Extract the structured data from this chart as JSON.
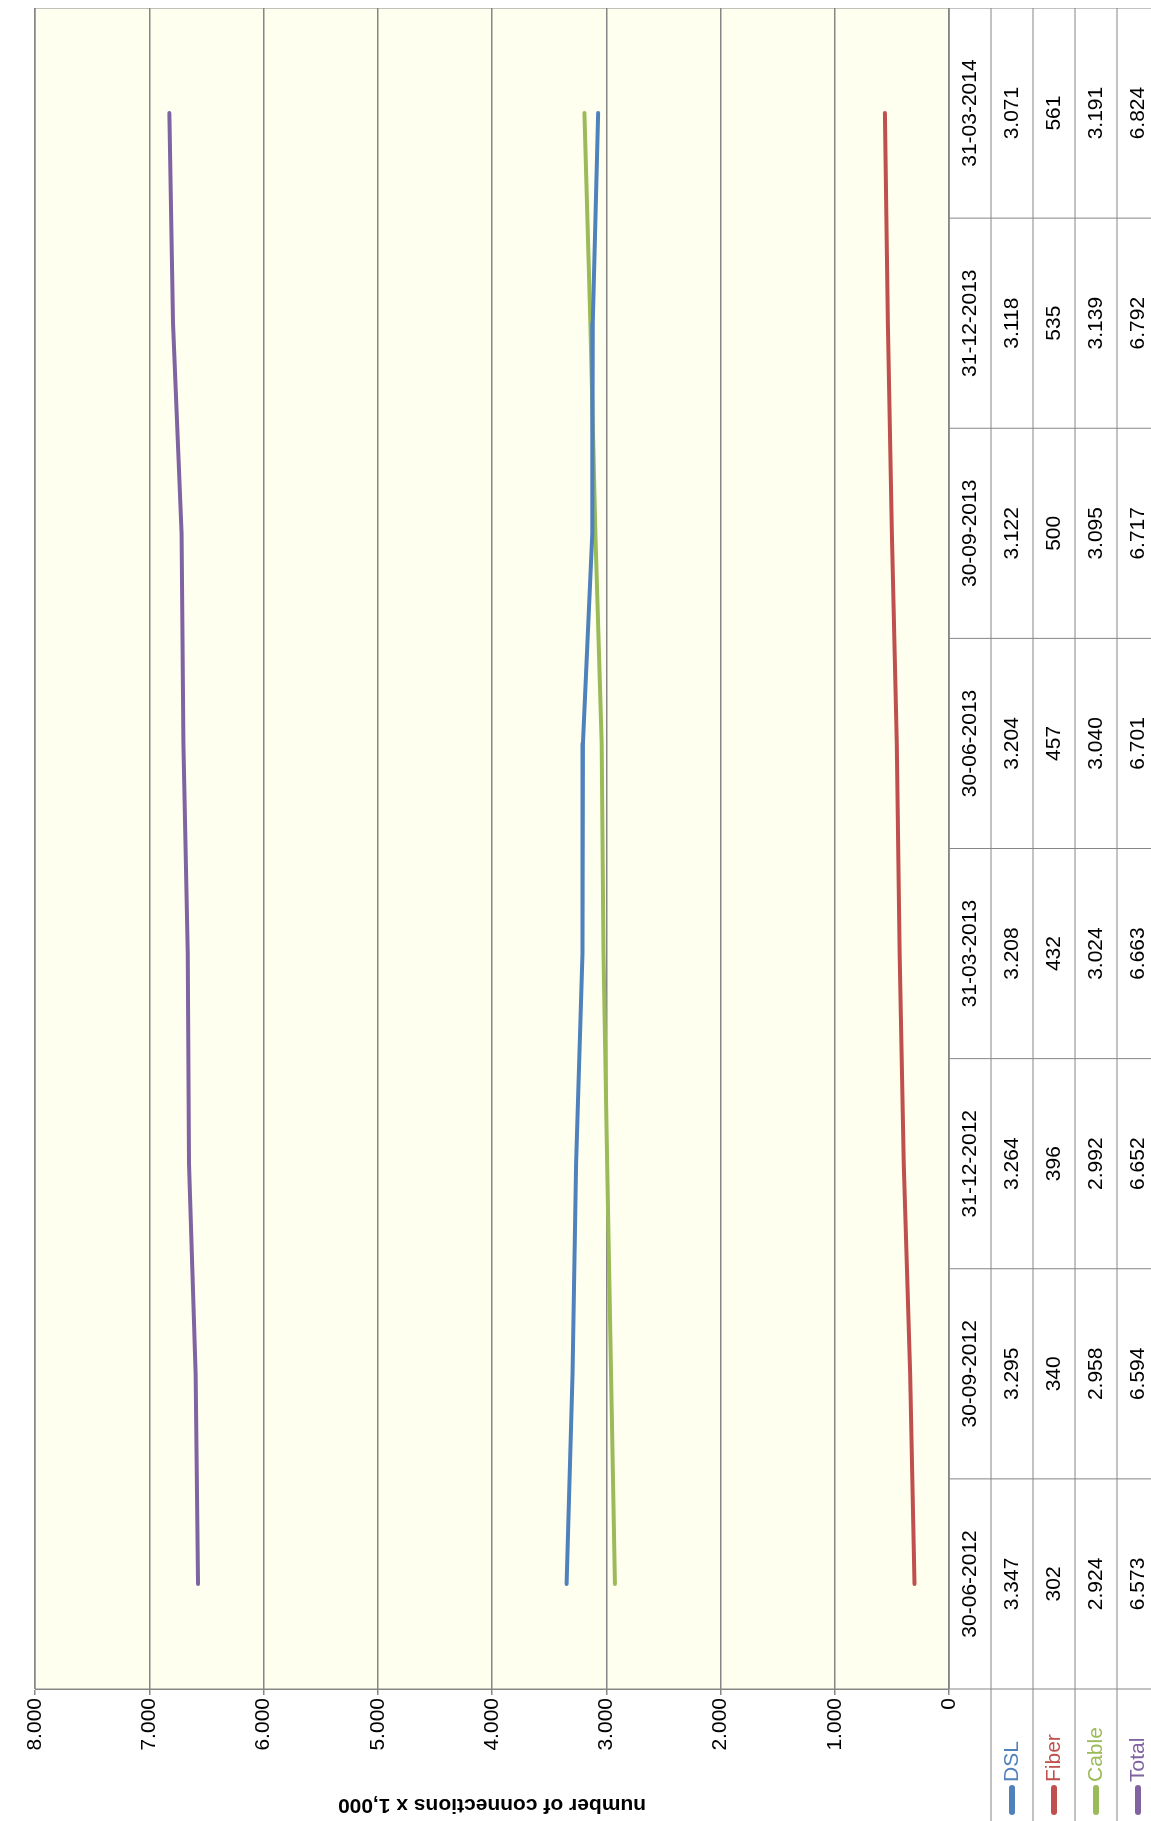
{
  "chart_data": {
    "type": "line",
    "orientation": "horizontal",
    "xlabel": "number of connections x 1,000",
    "categories": [
      "31-03-2014",
      "31-12-2013",
      "30-09-2013",
      "30-06-2013",
      "31-03-2013",
      "31-12-2012",
      "30-09-2012",
      "30-06-2012"
    ],
    "series": [
      {
        "name": "DSL",
        "color": "#4f81bd",
        "values": [
          3071,
          3118,
          3122,
          3204,
          3208,
          3264,
          3295,
          3347
        ],
        "value_labels": [
          "3.071",
          "3.118",
          "3.122",
          "3.204",
          "3.208",
          "3.264",
          "3.295",
          "3.347"
        ]
      },
      {
        "name": "Fiber",
        "color": "#c0504d",
        "values": [
          561,
          535,
          500,
          457,
          432,
          396,
          340,
          302
        ],
        "value_labels": [
          "561",
          "535",
          "500",
          "457",
          "432",
          "396",
          "340",
          "302"
        ]
      },
      {
        "name": "Cable",
        "color": "#9bbb59",
        "values": [
          3191,
          3139,
          3095,
          3040,
          3024,
          2992,
          2958,
          2924
        ],
        "value_labels": [
          "3.191",
          "3.139",
          "3.095",
          "3.040",
          "3.024",
          "2.992",
          "2.958",
          "2.924"
        ]
      },
      {
        "name": "Total",
        "color": "#8064a2",
        "values": [
          6824,
          6792,
          6717,
          6701,
          6663,
          6652,
          6594,
          6573
        ],
        "value_labels": [
          "6.824",
          "6.792",
          "6.717",
          "6.701",
          "6.663",
          "6.652",
          "6.594",
          "6.573"
        ]
      }
    ],
    "xlim": [
      8000,
      0
    ],
    "xticks": [
      {
        "value": 8000,
        "label": "8.000"
      },
      {
        "value": 7000,
        "label": "7.000"
      },
      {
        "value": 6000,
        "label": "6.000"
      },
      {
        "value": 5000,
        "label": "5.000"
      },
      {
        "value": 4000,
        "label": "4.000"
      },
      {
        "value": 3000,
        "label": "3.000"
      },
      {
        "value": 2000,
        "label": "2.000"
      },
      {
        "value": 1000,
        "label": "1.000"
      },
      0
    ],
    "grid": "x",
    "legend": "bottom",
    "marker": "none",
    "line_style": "solid"
  }
}
